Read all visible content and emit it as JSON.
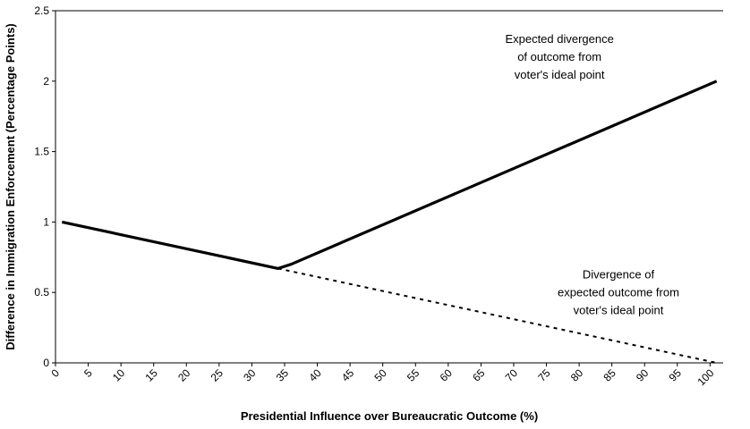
{
  "chart_data": {
    "type": "line",
    "title": "",
    "xlabel": "Presidential Influence over Bureaucratic Outcome (%)",
    "ylabel": "Difference in Immigration Enforcement (Percentage Points)",
    "xlim": [
      0,
      102
    ],
    "ylim": [
      0,
      2.5
    ],
    "x_ticks": [
      "0",
      "5",
      "10",
      "15",
      "20",
      "25",
      "30",
      "35",
      "40",
      "45",
      "50",
      "55",
      "60",
      "65",
      "70",
      "75",
      "80",
      "85",
      "90",
      "95",
      "100"
    ],
    "y_ticks": [
      "0",
      "0.5",
      "1",
      "1.5",
      "2",
      "2.5"
    ],
    "grid": false,
    "legend": "none",
    "series": [
      {
        "name": "Expected divergence of outcome from voter's ideal point",
        "style": "solid",
        "color": "#000000",
        "points": [
          [
            1,
            1.0
          ],
          [
            34,
            0.67
          ],
          [
            36,
            0.7
          ],
          [
            101,
            2.0
          ]
        ]
      },
      {
        "name": "Divergence of expected outcome from voter's ideal point",
        "style": "dashed",
        "color": "#000000",
        "points": [
          [
            34,
            0.67
          ],
          [
            101,
            0.0
          ]
        ]
      }
    ],
    "annotations": [
      {
        "lines": [
          "Expected divergence",
          "of outcome from",
          "voter's ideal point"
        ],
        "x": 77,
        "y": 2.27
      },
      {
        "lines": [
          "Divergence of",
          "expected outcome from",
          "voter's ideal point"
        ],
        "x": 86,
        "y": 0.6
      }
    ]
  }
}
